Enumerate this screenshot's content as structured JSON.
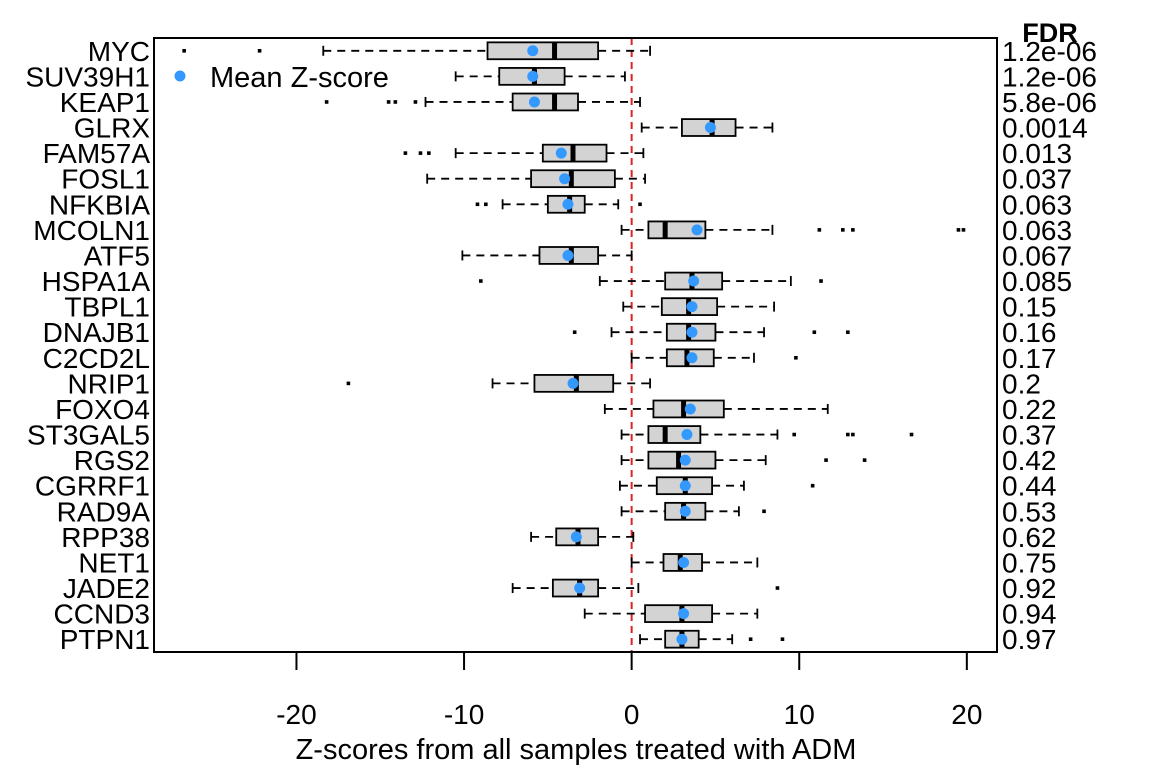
{
  "chart_data": {
    "type": "boxplot",
    "orientation": "horizontal",
    "xlabel": "Z-scores from all samples treated with ADM",
    "xlim": [
      -28.5,
      21.8
    ],
    "xticks": [
      -20,
      -10,
      0,
      10,
      20
    ],
    "reference_line": {
      "x": 0,
      "color": "#dd2222",
      "style": "dashed"
    },
    "right_axis_title": "FDR",
    "legend": {
      "label": "Mean Z-score",
      "color": "#3399ff",
      "position": "top-left"
    },
    "box_color": "#d3d3d3",
    "mean_color": "#3399ff",
    "genes": [
      {
        "name": "MYC",
        "fdr": "1.2e-06",
        "whisker_low": -18.4,
        "q1": -8.6,
        "median": -4.6,
        "q3": -2.0,
        "whisker_high": 1.1,
        "mean": -5.9,
        "outliers": [
          -26.7,
          -22.2
        ]
      },
      {
        "name": "SUV39H1",
        "fdr": "1.2e-06",
        "whisker_low": -10.5,
        "q1": -7.9,
        "median": -5.8,
        "q3": -4.0,
        "whisker_high": -0.4,
        "mean": -5.9,
        "outliers": []
      },
      {
        "name": "KEAP1",
        "fdr": "5.8e-06",
        "whisker_low": -12.3,
        "q1": -7.1,
        "median": -4.6,
        "q3": -3.2,
        "whisker_high": 0.5,
        "mean": -5.8,
        "outliers": [
          -18.2,
          -14.5,
          -14.1,
          -12.9
        ]
      },
      {
        "name": "GLRX",
        "fdr": "0.0014",
        "whisker_low": 0.6,
        "q1": 3.0,
        "median": 4.8,
        "q3": 6.2,
        "whisker_high": 8.4,
        "mean": 4.7,
        "outliers": []
      },
      {
        "name": "FAM57A",
        "fdr": "0.013",
        "whisker_low": -10.5,
        "q1": -5.3,
        "median": -3.5,
        "q3": -1.5,
        "whisker_high": 0.7,
        "mean": -4.2,
        "outliers": [
          -13.5,
          -12.6,
          -12.1
        ]
      },
      {
        "name": "FOSL1",
        "fdr": "0.037",
        "whisker_low": -12.2,
        "q1": -6.0,
        "median": -3.6,
        "q3": -1.0,
        "whisker_high": 0.8,
        "mean": -4.0,
        "outliers": []
      },
      {
        "name": "NFKBIA",
        "fdr": "0.063",
        "whisker_low": -7.7,
        "q1": -5.0,
        "median": -3.7,
        "q3": -2.8,
        "whisker_high": -0.8,
        "mean": -3.8,
        "outliers": [
          -9.2,
          -8.7,
          0.5
        ]
      },
      {
        "name": "MCOLN1",
        "fdr": "0.063",
        "whisker_low": -0.6,
        "q1": 1.0,
        "median": 2.0,
        "q3": 4.4,
        "whisker_high": 8.4,
        "mean": 3.9,
        "outliers": [
          11.2,
          12.6,
          13.2,
          19.5,
          19.8
        ]
      },
      {
        "name": "ATF5",
        "fdr": "0.067",
        "whisker_low": -10.1,
        "q1": -5.5,
        "median": -3.6,
        "q3": -2.0,
        "whisker_high": 0.0,
        "mean": -3.8,
        "outliers": []
      },
      {
        "name": "HSPA1A",
        "fdr": "0.085",
        "whisker_low": -1.9,
        "q1": 2.0,
        "median": 3.6,
        "q3": 5.4,
        "whisker_high": 9.5,
        "mean": 3.7,
        "outliers": [
          -9.0,
          11.3
        ]
      },
      {
        "name": "TBPL1",
        "fdr": "0.15",
        "whisker_low": -0.5,
        "q1": 1.8,
        "median": 3.4,
        "q3": 5.1,
        "whisker_high": 8.5,
        "mean": 3.6,
        "outliers": []
      },
      {
        "name": "DNAJB1",
        "fdr": "0.16",
        "whisker_low": -1.2,
        "q1": 2.1,
        "median": 3.4,
        "q3": 5.0,
        "whisker_high": 7.9,
        "mean": 3.6,
        "outliers": [
          -3.4,
          10.9,
          12.9
        ]
      },
      {
        "name": "C2CD2L",
        "fdr": "0.17",
        "whisker_low": 0.0,
        "q1": 2.1,
        "median": 3.3,
        "q3": 4.9,
        "whisker_high": 7.3,
        "mean": 3.6,
        "outliers": [
          9.8
        ]
      },
      {
        "name": "NRIP1",
        "fdr": "0.2",
        "whisker_low": -8.3,
        "q1": -5.8,
        "median": -3.3,
        "q3": -1.1,
        "whisker_high": 1.1,
        "mean": -3.5,
        "outliers": [
          -16.9
        ]
      },
      {
        "name": "FOXO4",
        "fdr": "0.22",
        "whisker_low": -1.6,
        "q1": 1.3,
        "median": 3.1,
        "q3": 5.5,
        "whisker_high": 11.7,
        "mean": 3.5,
        "outliers": []
      },
      {
        "name": "ST3GAL5",
        "fdr": "0.37",
        "whisker_low": -0.6,
        "q1": 1.0,
        "median": 2.0,
        "q3": 4.1,
        "whisker_high": 8.7,
        "mean": 3.3,
        "outliers": [
          9.7,
          12.9,
          13.2,
          16.7
        ]
      },
      {
        "name": "RGS2",
        "fdr": "0.42",
        "whisker_low": -0.6,
        "q1": 1.0,
        "median": 2.8,
        "q3": 5.0,
        "whisker_high": 8.0,
        "mean": 3.2,
        "outliers": [
          11.6,
          13.9
        ]
      },
      {
        "name": "CGRRF1",
        "fdr": "0.44",
        "whisker_low": -0.7,
        "q1": 1.5,
        "median": 3.2,
        "q3": 4.8,
        "whisker_high": 6.7,
        "mean": 3.2,
        "outliers": [
          10.8
        ]
      },
      {
        "name": "RAD9A",
        "fdr": "0.53",
        "whisker_low": -0.6,
        "q1": 2.0,
        "median": 3.1,
        "q3": 4.4,
        "whisker_high": 6.4,
        "mean": 3.2,
        "outliers": [
          7.9
        ]
      },
      {
        "name": "RPP38",
        "fdr": "0.62",
        "whisker_low": -6.0,
        "q1": -4.5,
        "median": -3.2,
        "q3": -2.0,
        "whisker_high": 0.1,
        "mean": -3.3,
        "outliers": []
      },
      {
        "name": "NET1",
        "fdr": "0.75",
        "whisker_low": 0.0,
        "q1": 1.9,
        "median": 2.9,
        "q3": 4.2,
        "whisker_high": 7.5,
        "mean": 3.1,
        "outliers": []
      },
      {
        "name": "JADE2",
        "fdr": "0.92",
        "whisker_low": -7.1,
        "q1": -4.7,
        "median": -3.1,
        "q3": -2.0,
        "whisker_high": 0.4,
        "mean": -3.1,
        "outliers": [
          8.7
        ]
      },
      {
        "name": "CCND3",
        "fdr": "0.94",
        "whisker_low": -2.8,
        "q1": 0.8,
        "median": 3.0,
        "q3": 4.8,
        "whisker_high": 7.5,
        "mean": 3.1,
        "outliers": []
      },
      {
        "name": "PTPN1",
        "fdr": "0.97",
        "whisker_low": 0.5,
        "q1": 2.0,
        "median": 3.0,
        "q3": 4.0,
        "whisker_high": 6.0,
        "mean": 3.0,
        "outliers": [
          7.1,
          9.0
        ]
      }
    ]
  }
}
